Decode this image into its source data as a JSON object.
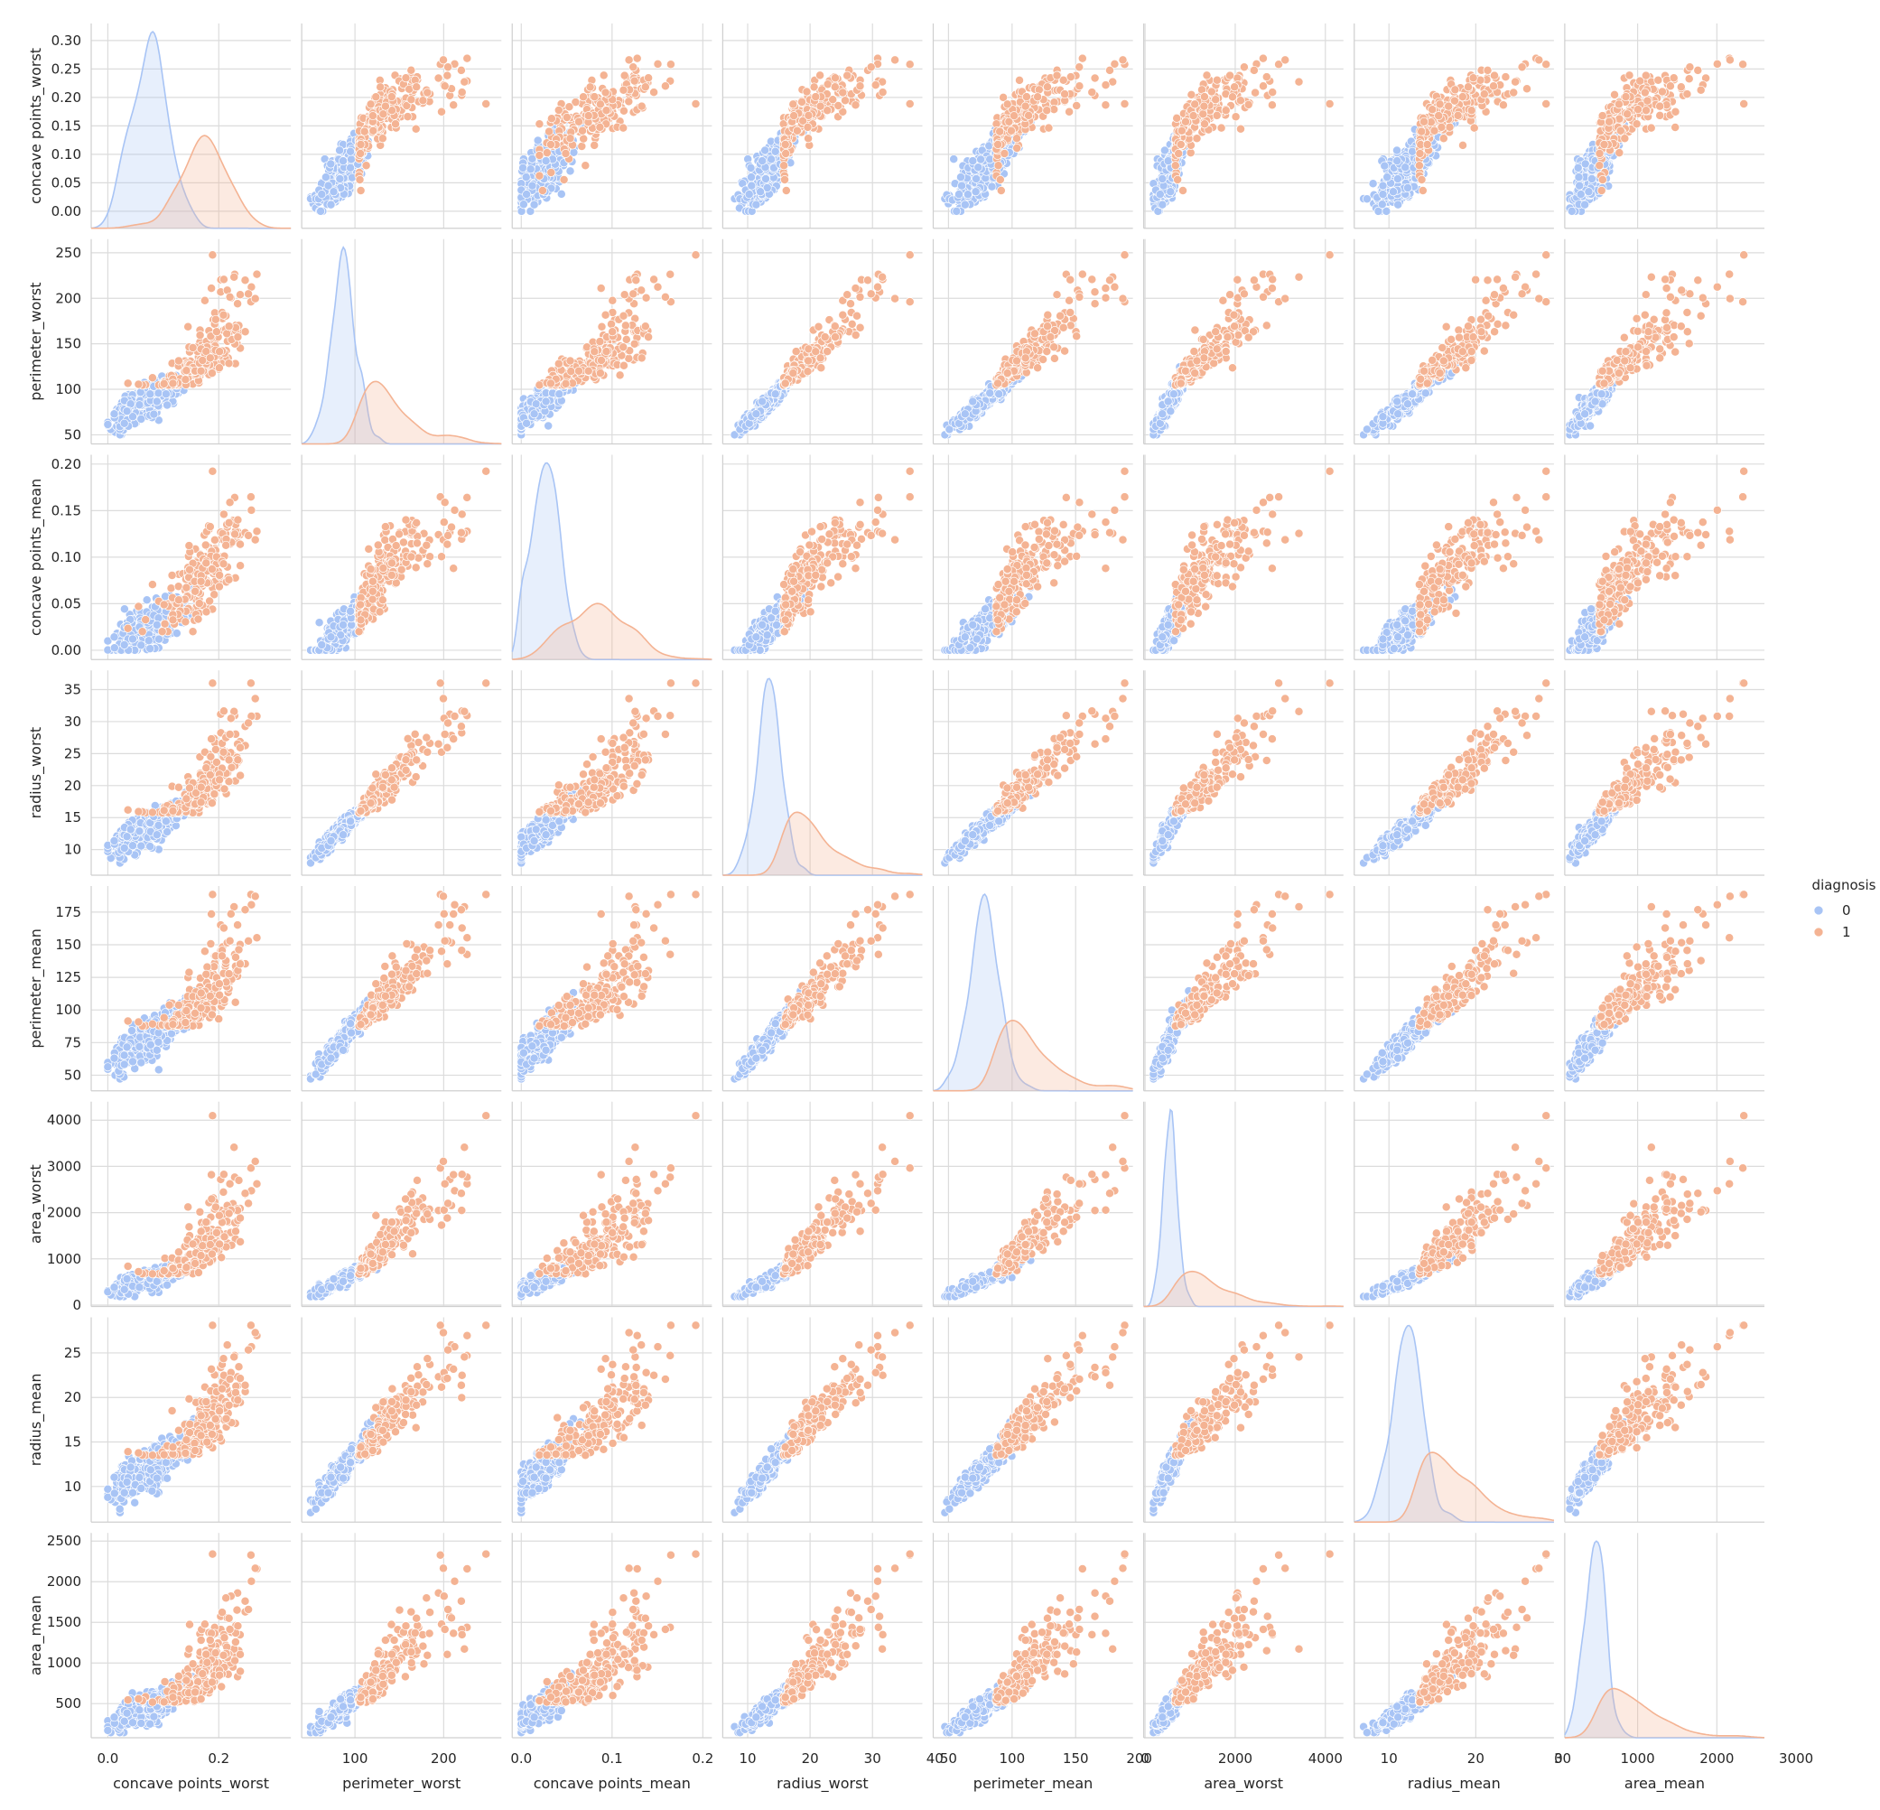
{
  "legend": {
    "title": "diagnosis",
    "entries": [
      {
        "label": "0",
        "color": "#a8c4f5"
      },
      {
        "label": "1",
        "color": "#f4b393"
      }
    ]
  },
  "chart_data": {
    "type": "scatter",
    "kind": "pairplot",
    "hue": "diagnosis",
    "grid": true,
    "legend_placement": "right",
    "diagonal": "kde",
    "hue_colors": {
      "0": "#a8c4f5",
      "1": "#f4b393"
    },
    "variables": [
      {
        "name": "concave points_worst",
        "range": [
          -0.03,
          0.33
        ],
        "ticks": [
          0.0,
          0.05,
          0.1,
          0.15,
          0.2,
          0.25,
          0.3
        ],
        "xticks": [
          0.0,
          0.2
        ],
        "decimals": 2,
        "xdecimals": 1,
        "class0": {
          "mean": 0.075,
          "sd": 0.035,
          "min": 0.0,
          "max": 0.18
        },
        "class1": {
          "mean": 0.18,
          "sd": 0.045,
          "min": 0.03,
          "max": 0.29
        }
      },
      {
        "name": "perimeter_worst",
        "range": [
          40,
          265
        ],
        "ticks": [
          50,
          100,
          150,
          200,
          250
        ],
        "xticks": [
          100,
          200
        ],
        "decimals": 0,
        "class0": {
          "mean": 87,
          "sd": 14,
          "min": 50,
          "max": 128
        },
        "class1": {
          "mean": 142,
          "sd": 30,
          "min": 85,
          "max": 252
        }
      },
      {
        "name": "concave points_mean",
        "range": [
          -0.01,
          0.21
        ],
        "ticks": [
          0.0,
          0.05,
          0.1,
          0.15,
          0.2
        ],
        "xticks": [
          0.0,
          0.1,
          0.2
        ],
        "decimals": 2,
        "xdecimals": 1,
        "class0": {
          "mean": 0.026,
          "sd": 0.016,
          "min": 0.0,
          "max": 0.085
        },
        "class1": {
          "mean": 0.088,
          "sd": 0.034,
          "min": 0.02,
          "max": 0.201
        }
      },
      {
        "name": "radius_worst",
        "range": [
          6,
          38
        ],
        "ticks": [
          10,
          15,
          20,
          25,
          30,
          35
        ],
        "xticks": [
          10,
          20,
          30,
          40
        ],
        "decimals": 0,
        "class0": {
          "mean": 13.4,
          "sd": 2.0,
          "min": 7.9,
          "max": 19.8
        },
        "class1": {
          "mean": 21.1,
          "sd": 4.3,
          "min": 12.8,
          "max": 36.0
        }
      },
      {
        "name": "perimeter_mean",
        "range": [
          38,
          195
        ],
        "ticks": [
          50,
          75,
          100,
          125,
          150,
          175
        ],
        "xticks": [
          50,
          100,
          150,
          200
        ],
        "decimals": 0,
        "class0": {
          "mean": 78,
          "sd": 11.8,
          "min": 43.8,
          "max": 114.6
        },
        "class1": {
          "mean": 115,
          "sd": 21.9,
          "min": 71.9,
          "max": 188.5
        }
      },
      {
        "name": "area_worst",
        "range": [
          -30,
          4400
        ],
        "ticks": [
          0,
          1000,
          2000,
          3000,
          4000
        ],
        "xticks": [
          0,
          2000,
          4000
        ],
        "decimals": 0,
        "class0": {
          "mean": 558,
          "sd": 163,
          "min": 185,
          "max": 1210
        },
        "class1": {
          "mean": 1422,
          "sd": 598,
          "min": 508,
          "max": 4254
        }
      },
      {
        "name": "radius_mean",
        "range": [
          6,
          29
        ],
        "ticks": [
          10,
          15,
          20,
          25
        ],
        "xticks": [
          10,
          20,
          30
        ],
        "decimals": 0,
        "class0": {
          "mean": 12.1,
          "sd": 1.8,
          "min": 7.0,
          "max": 17.9
        },
        "class1": {
          "mean": 17.5,
          "sd": 3.2,
          "min": 11.0,
          "max": 28.1
        }
      },
      {
        "name": "area_mean",
        "range": [
          80,
          2600
        ],
        "ticks": [
          500,
          1000,
          1500,
          2000,
          2500
        ],
        "xticks": [
          0,
          1000,
          2000,
          3000
        ],
        "decimals": 0,
        "class0": {
          "mean": 463,
          "sd": 134,
          "min": 144,
          "max": 992
        },
        "class1": {
          "mean": 978,
          "sd": 368,
          "min": 362,
          "max": 2501
        }
      }
    ],
    "n_points": {
      "0": 357,
      "1": 212
    }
  }
}
